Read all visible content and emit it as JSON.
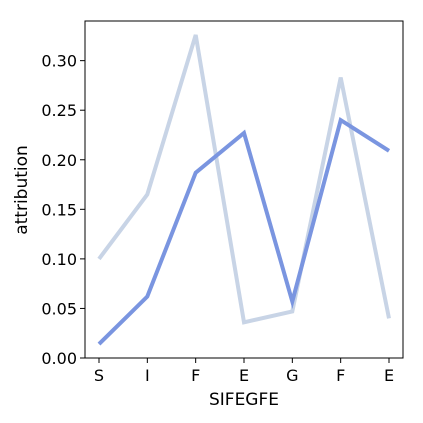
{
  "chart_data": {
    "type": "line",
    "title": "",
    "xlabel": "SIFEGFE",
    "ylabel": "attribution",
    "categories": [
      "S",
      "I",
      "F",
      "E",
      "G",
      "F",
      "E"
    ],
    "ylim": [
      0.0,
      0.34
    ],
    "yticks": [
      "0.00",
      "0.05",
      "0.10",
      "0.15",
      "0.20",
      "0.25",
      "0.30"
    ],
    "grid": false,
    "legend": "none",
    "series": [
      {
        "color": "#c8d4e6",
        "values": [
          0.1,
          0.165,
          0.326,
          0.036,
          0.047,
          0.283,
          0.04
        ]
      },
      {
        "color": "#7a95e0",
        "values": [
          0.014,
          0.062,
          0.187,
          0.227,
          0.057,
          0.24,
          0.209
        ]
      }
    ]
  }
}
